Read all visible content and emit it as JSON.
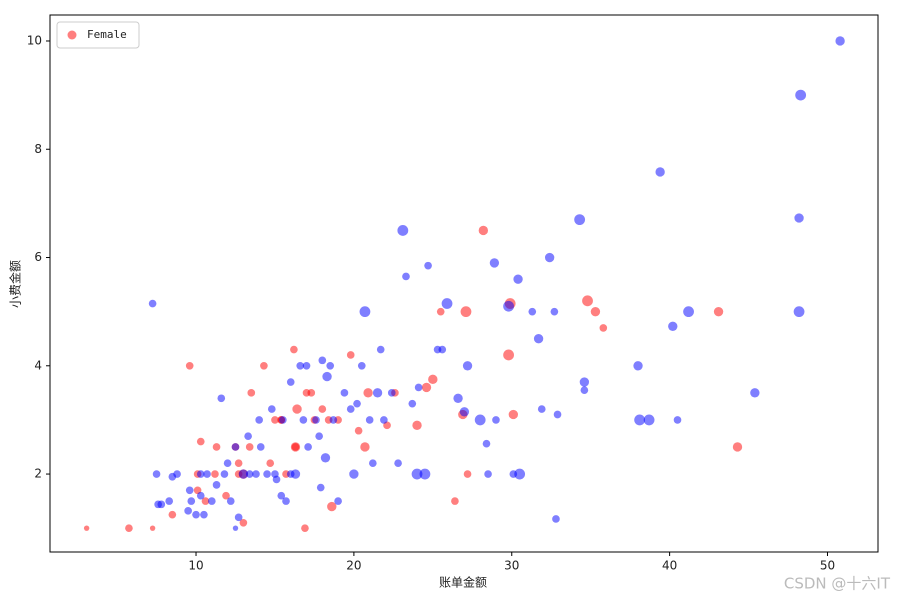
{
  "chart_data": {
    "type": "scatter",
    "xlabel": "账单金额",
    "ylabel": "小费金额",
    "xlim": [
      0.75,
      53.2
    ],
    "ylim": [
      0.56,
      10.48
    ],
    "xticks": [
      10,
      20,
      30,
      40,
      50
    ],
    "yticks": [
      2,
      4,
      6,
      8,
      10
    ],
    "legend": "upper left",
    "alpha": 0.5,
    "series": [
      {
        "name": "Female",
        "color": "#ff0000",
        "x": [
          3.07,
          5.75,
          7.25,
          8.5,
          9.6,
          10.1,
          10.3,
          10.1,
          10.6,
          11.2,
          11.9,
          12.5,
          12.7,
          13,
          13,
          13.4,
          13.5,
          14.3,
          14.7,
          15,
          15.4,
          15.7,
          16.2,
          16.3,
          16.4,
          16.9,
          17,
          17.3,
          17.5,
          18,
          18.4,
          18.6,
          19.8,
          20.3,
          20.7,
          20.9,
          22.1,
          22.6,
          24,
          24.6,
          25,
          25.5,
          26.4,
          26.9,
          27.1,
          27.2,
          28.2,
          29.9,
          29.8,
          30.1,
          34.8,
          35.3,
          35.8,
          43.1,
          44.3,
          16.3,
          15.4,
          19,
          12.7,
          11.3
        ],
        "values": [
          1,
          1,
          1,
          1.25,
          4,
          2,
          2.6,
          1.7,
          1.5,
          2,
          1.6,
          2.5,
          2.2,
          2,
          1.1,
          2.5,
          3.5,
          4,
          2.2,
          3,
          3,
          2,
          4.3,
          2.5,
          3.2,
          1,
          3.5,
          3.5,
          3,
          3.2,
          3,
          1.4,
          4.2,
          2.8,
          2.5,
          3.5,
          2.9,
          3.5,
          2.9,
          3.6,
          3.75,
          5,
          1.5,
          3.1,
          5,
          2,
          6.5,
          5.15,
          4.2,
          3.1,
          5.2,
          5,
          4.7,
          5,
          2.5,
          2.5,
          3,
          3,
          2,
          2.5
        ],
        "sizes": [
          1,
          2,
          1,
          2,
          2,
          2,
          2,
          2,
          2,
          2,
          2,
          2,
          2,
          3,
          2,
          2,
          2,
          2,
          2,
          2,
          2,
          2,
          2,
          3,
          3,
          2,
          2,
          2,
          2,
          2,
          2,
          3,
          2,
          2,
          3,
          3,
          2,
          2,
          3,
          3,
          3,
          2,
          2,
          3,
          4,
          2,
          3,
          4,
          4,
          3,
          4,
          3,
          2,
          3,
          3,
          2,
          2,
          2,
          2,
          2
        ]
      },
      {
        "color": "#0000ff",
        "x": [
          7.25,
          7.5,
          7.6,
          7.8,
          8.3,
          8.5,
          8.8,
          9.5,
          9.6,
          9.7,
          10,
          10.3,
          10.3,
          10.5,
          10.7,
          11,
          11.3,
          11.6,
          11.8,
          12,
          12.2,
          12.5,
          12.5,
          12.7,
          13,
          13.3,
          13.4,
          13.8,
          14,
          14.1,
          14.5,
          14.8,
          15,
          15.1,
          15.4,
          15.5,
          15.7,
          16,
          16,
          16.3,
          16.6,
          16.8,
          17,
          17.1,
          17.6,
          17.8,
          17.9,
          18,
          18.2,
          18.3,
          18.5,
          18.7,
          19,
          19.4,
          19.8,
          20,
          20.2,
          20.5,
          20.7,
          21,
          21.2,
          21.5,
          21.7,
          21.9,
          22.4,
          22.8,
          23.1,
          23.3,
          23.7,
          24,
          24.1,
          24.5,
          24.7,
          25.3,
          25.6,
          25.9,
          26.6,
          27,
          27.2,
          28,
          28.4,
          28.5,
          28.9,
          29,
          29.8,
          30.1,
          30.4,
          30.5,
          31.3,
          31.7,
          31.9,
          32.4,
          32.7,
          32.8,
          32.9,
          34.3,
          34.6,
          34.6,
          38,
          38.1,
          38.7,
          39.4,
          40.2,
          40.5,
          41.2,
          45.4,
          48.2,
          48.2,
          48.3,
          50.8
        ],
        "values": [
          5.15,
          2,
          1.44,
          1.44,
          1.5,
          1.95,
          2,
          1.32,
          1.7,
          1.5,
          1.25,
          1.6,
          2,
          1.25,
          2,
          1.5,
          1.8,
          3.4,
          2,
          2.2,
          1.5,
          2.5,
          1,
          1.2,
          2,
          2.7,
          2,
          2,
          3,
          2.5,
          2,
          3.2,
          2,
          1.9,
          1.6,
          3,
          1.5,
          2,
          3.7,
          2,
          4,
          3,
          4,
          2.5,
          3,
          2.7,
          1.75,
          4.1,
          2.3,
          3.8,
          4,
          3,
          1.5,
          3.5,
          3.2,
          2,
          3.3,
          4,
          5,
          3,
          2.2,
          3.5,
          4.3,
          3,
          3.5,
          2.2,
          6.5,
          5.65,
          3.3,
          2,
          3.6,
          2,
          5.85,
          4.3,
          4.3,
          5.15,
          3.4,
          3.15,
          4,
          3,
          2.56,
          2,
          5.9,
          3,
          5.1,
          2,
          5.6,
          2,
          5,
          4.5,
          3.2,
          6,
          5,
          1.17,
          3.1,
          6.7,
          3.7,
          3.55,
          4,
          3,
          3,
          7.58,
          4.73,
          3,
          5,
          3.5,
          5,
          6.73,
          9,
          10
        ],
        "sizes": [
          2,
          2,
          2,
          2,
          2,
          2,
          2,
          2,
          2,
          2,
          2,
          2,
          2,
          2,
          2,
          2,
          2,
          2,
          2,
          2,
          2,
          2,
          1,
          2,
          3,
          2,
          2,
          2,
          2,
          2,
          2,
          2,
          2,
          2,
          2,
          2,
          2,
          2,
          2,
          3,
          2,
          2,
          2,
          2,
          2,
          2,
          2,
          2,
          3,
          3,
          2,
          2,
          2,
          2,
          2,
          3,
          2,
          2,
          4,
          2,
          2,
          3,
          2,
          2,
          2,
          2,
          4,
          2,
          2,
          4,
          2,
          4,
          2,
          2,
          2,
          4,
          3,
          3,
          3,
          4,
          2,
          2,
          3,
          2,
          4,
          2,
          3,
          4,
          2,
          3,
          2,
          3,
          2,
          2,
          2,
          4,
          3,
          2,
          3,
          4,
          4,
          3,
          3,
          2,
          4,
          3,
          4,
          3,
          4,
          3
        ]
      }
    ]
  },
  "watermark": "CSDN @十六IT"
}
